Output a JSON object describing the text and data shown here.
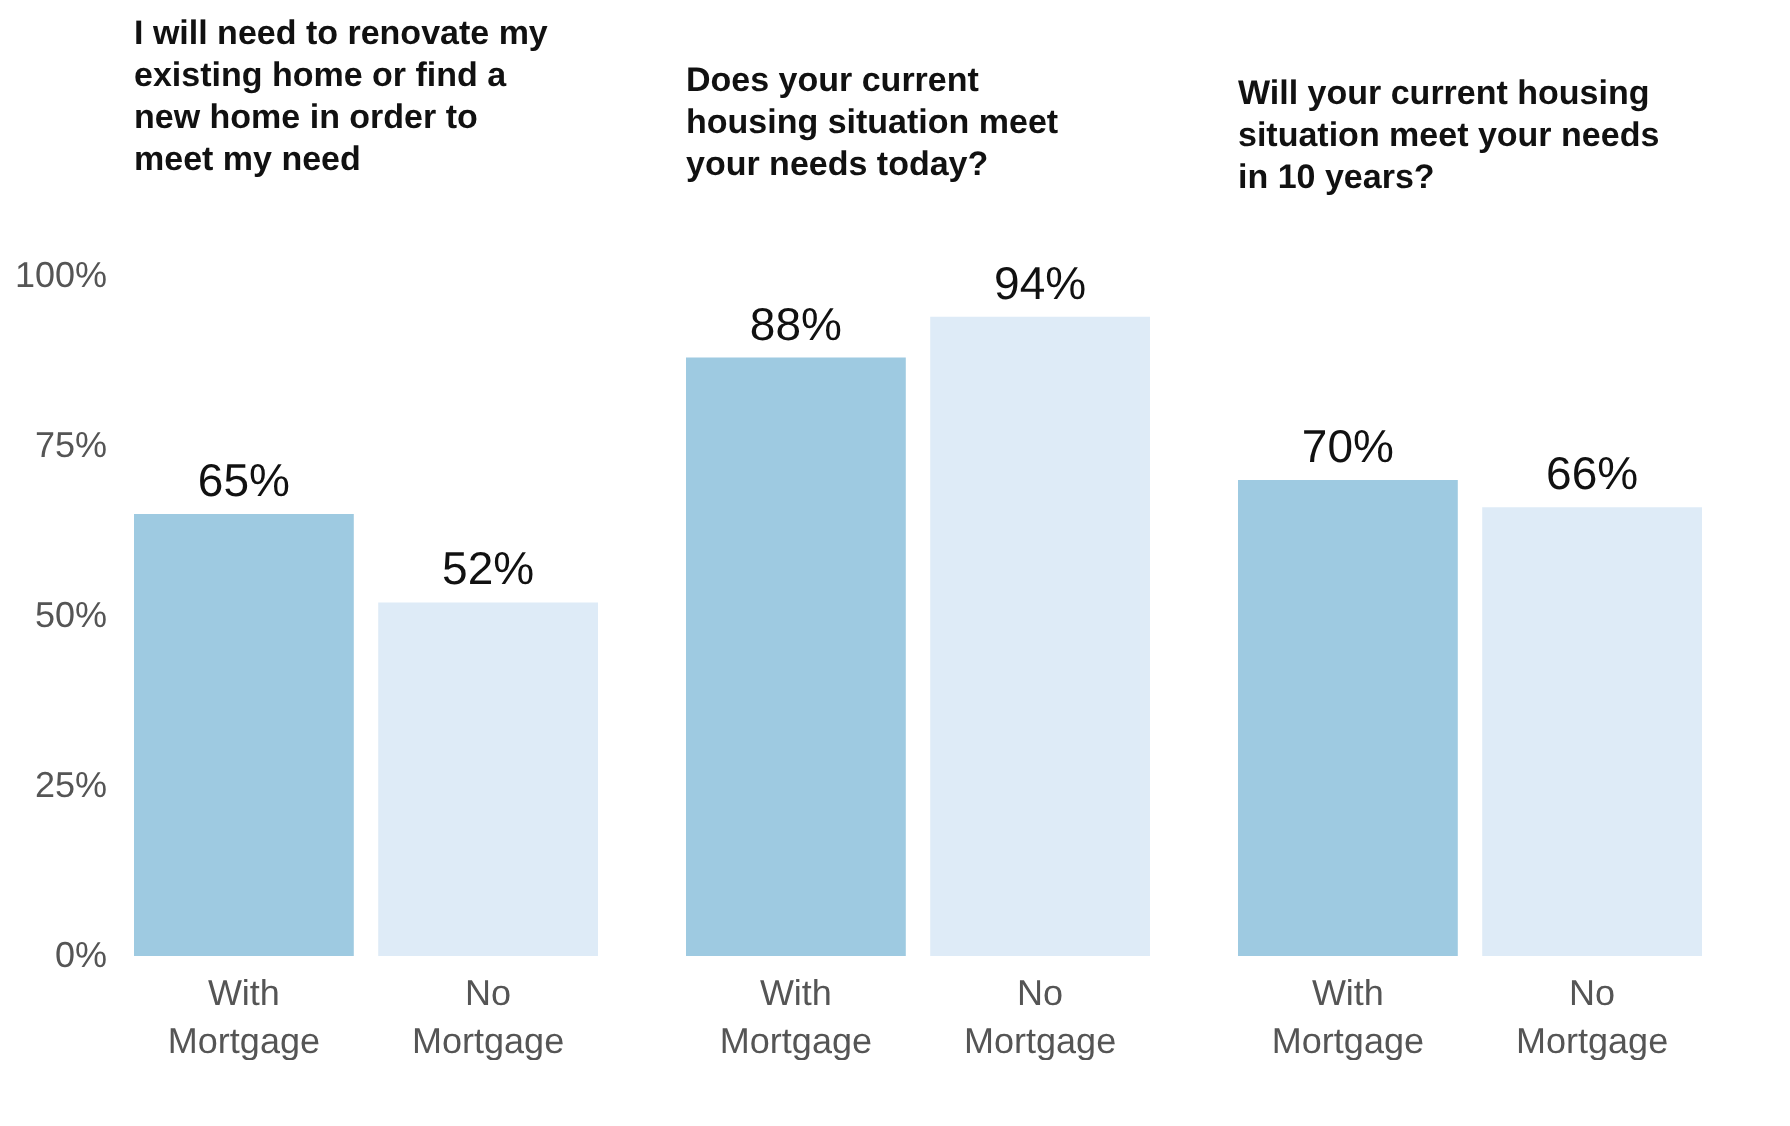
{
  "chart_data": [
    {
      "type": "bar",
      "title": "I will need to renovate my existing home or find a new home in order to meet my need",
      "categories": [
        "With Mortgage",
        "No Mortgage"
      ],
      "values": [
        65,
        52
      ],
      "colors": [
        "#9ecae1",
        "#deebf7"
      ],
      "value_labels": [
        "65%",
        "52%"
      ],
      "ylim": [
        0,
        100
      ],
      "yticks": [
        {
          "value": 0,
          "label": "0%"
        },
        {
          "value": 25,
          "label": "25%"
        },
        {
          "value": 50,
          "label": "50%"
        },
        {
          "value": 75,
          "label": "75%"
        },
        {
          "value": 100,
          "label": "100%"
        }
      ]
    },
    {
      "type": "bar",
      "title": "Does your current housing situation meet your needs today?",
      "categories": [
        "With Mortgage",
        "No Mortgage"
      ],
      "values": [
        88,
        94
      ],
      "colors": [
        "#9ecae1",
        "#deebf7"
      ],
      "value_labels": [
        "88%",
        "94%"
      ],
      "ylim": [
        0,
        100
      ],
      "tick_labels": "x"
    },
    {
      "type": "bar",
      "title": "Will your current housing situation meet your needs in 10 years?",
      "categories": [
        "With Mortgage",
        "No Mortgage"
      ],
      "values": [
        70,
        66
      ],
      "colors": [
        "#9ecae1",
        "#deebf7"
      ],
      "value_labels": [
        "70%",
        "66%"
      ],
      "ylim": [
        0,
        100
      ],
      "tick_labels": "x"
    }
  ]
}
